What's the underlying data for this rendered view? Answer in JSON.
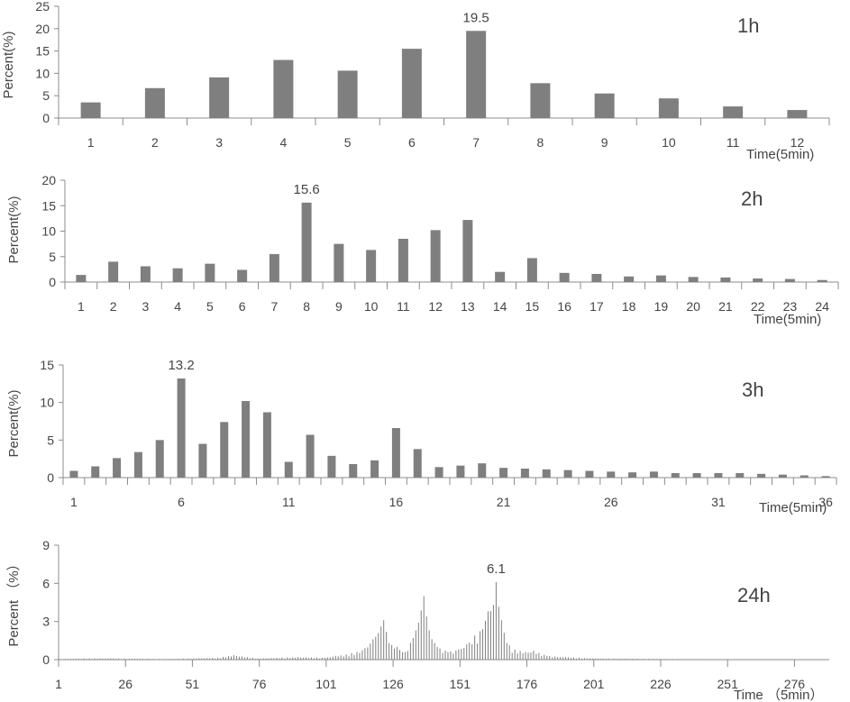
{
  "bar_color": "#7f7f7f",
  "axis_color": "#8c8c8c",
  "chart_data": [
    {
      "type": "bar",
      "title": "1h",
      "ylabel": "Percent(%)",
      "xlabel": "Time(5min)",
      "ylim": [
        0,
        25
      ],
      "yticks": [
        0,
        5,
        10,
        15,
        20,
        25
      ],
      "xticks": [
        1,
        2,
        3,
        4,
        5,
        6,
        7,
        8,
        9,
        10,
        11,
        12
      ],
      "categories": [
        1,
        2,
        3,
        4,
        5,
        6,
        7,
        8,
        9,
        10,
        11,
        12
      ],
      "values": [
        3.5,
        6.7,
        9.1,
        13.0,
        10.6,
        15.5,
        19.5,
        7.8,
        5.5,
        4.4,
        2.6,
        1.8
      ],
      "peak_label": "19.5",
      "peak_index": 6
    },
    {
      "type": "bar",
      "title": "2h",
      "ylabel": "Percent(%)",
      "xlabel": "Time(5min)",
      "ylim": [
        0,
        20
      ],
      "yticks": [
        0,
        5,
        10,
        15,
        20
      ],
      "xticks": [
        1,
        2,
        3,
        4,
        5,
        6,
        7,
        8,
        9,
        10,
        11,
        12,
        13,
        14,
        15,
        16,
        17,
        18,
        19,
        20,
        21,
        22,
        23,
        24
      ],
      "categories": [
        1,
        2,
        3,
        4,
        5,
        6,
        7,
        8,
        9,
        10,
        11,
        12,
        13,
        14,
        15,
        16,
        17,
        18,
        19,
        20,
        21,
        22,
        23,
        24
      ],
      "values": [
        1.4,
        4.0,
        3.1,
        2.7,
        3.6,
        2.4,
        5.5,
        15.6,
        7.5,
        6.3,
        8.5,
        10.2,
        12.2,
        2.0,
        4.7,
        1.8,
        1.6,
        1.1,
        1.3,
        1.0,
        0.9,
        0.7,
        0.6,
        0.4
      ],
      "peak_label": "15.6",
      "peak_index": 7
    },
    {
      "type": "bar",
      "title": "3h",
      "ylabel": "Percent(%)",
      "xlabel": "Time(5min)",
      "ylim": [
        0,
        15
      ],
      "yticks": [
        0,
        5,
        10,
        15
      ],
      "xticks": [
        1,
        6,
        11,
        16,
        21,
        26,
        31,
        36
      ],
      "categories": [
        1,
        2,
        3,
        4,
        5,
        6,
        7,
        8,
        9,
        10,
        11,
        12,
        13,
        14,
        15,
        16,
        17,
        18,
        19,
        20,
        21,
        22,
        23,
        24,
        25,
        26,
        27,
        28,
        29,
        30,
        31,
        32,
        33,
        34,
        35,
        36
      ],
      "values": [
        0.9,
        1.5,
        2.6,
        3.4,
        5.0,
        13.2,
        4.5,
        7.4,
        10.2,
        8.7,
        2.1,
        5.7,
        2.9,
        1.8,
        2.3,
        6.6,
        3.8,
        1.4,
        1.6,
        1.9,
        1.3,
        1.2,
        1.1,
        1.0,
        0.9,
        0.8,
        0.7,
        0.8,
        0.6,
        0.6,
        0.6,
        0.6,
        0.5,
        0.4,
        0.3,
        0.2
      ],
      "peak_label": "13.2",
      "peak_index": 5
    },
    {
      "type": "bar",
      "title": "24h",
      "ylabel": "Percent （%）",
      "xlabel": "Time （5min）",
      "ylim": [
        0,
        9
      ],
      "yticks": [
        0,
        3,
        6,
        9
      ],
      "xticks": [
        1,
        26,
        51,
        76,
        101,
        126,
        151,
        176,
        201,
        226,
        251,
        276
      ],
      "x_count": 288,
      "peaks": [
        {
          "x": 1,
          "value": 0.05
        },
        {
          "x": 10,
          "value": 0.1
        },
        {
          "x": 20,
          "value": 0.1
        },
        {
          "x": 40,
          "value": 0.05
        },
        {
          "x": 60,
          "value": 0.15
        },
        {
          "x": 66,
          "value": 0.35
        },
        {
          "x": 75,
          "value": 0.1
        },
        {
          "x": 90,
          "value": 0.2
        },
        {
          "x": 100,
          "value": 0.15
        },
        {
          "x": 104,
          "value": 0.3
        },
        {
          "x": 108,
          "value": 0.4
        },
        {
          "x": 112,
          "value": 0.6
        },
        {
          "x": 115,
          "value": 0.9
        },
        {
          "x": 118,
          "value": 1.6
        },
        {
          "x": 120,
          "value": 2.1
        },
        {
          "x": 122,
          "value": 3.1
        },
        {
          "x": 124,
          "value": 1.3
        },
        {
          "x": 127,
          "value": 1.0
        },
        {
          "x": 130,
          "value": 0.6
        },
        {
          "x": 133,
          "value": 1.7
        },
        {
          "x": 135,
          "value": 2.9
        },
        {
          "x": 137,
          "value": 5.0
        },
        {
          "x": 139,
          "value": 2.3
        },
        {
          "x": 142,
          "value": 1.0
        },
        {
          "x": 146,
          "value": 0.6
        },
        {
          "x": 150,
          "value": 0.8
        },
        {
          "x": 153,
          "value": 1.2
        },
        {
          "x": 156,
          "value": 1.9
        },
        {
          "x": 159,
          "value": 2.4
        },
        {
          "x": 161,
          "value": 3.8
        },
        {
          "x": 163,
          "value": 4.3
        },
        {
          "x": 164,
          "value": 6.1
        },
        {
          "x": 166,
          "value": 3.1
        },
        {
          "x": 168,
          "value": 1.3
        },
        {
          "x": 171,
          "value": 0.8
        },
        {
          "x": 175,
          "value": 0.6
        },
        {
          "x": 178,
          "value": 0.7
        },
        {
          "x": 183,
          "value": 0.3
        },
        {
          "x": 190,
          "value": 0.2
        },
        {
          "x": 200,
          "value": 0.1
        },
        {
          "x": 230,
          "value": 0.05
        },
        {
          "x": 288,
          "value": 0.0
        }
      ],
      "peak_label": "6.1",
      "peak_index": 163
    }
  ]
}
